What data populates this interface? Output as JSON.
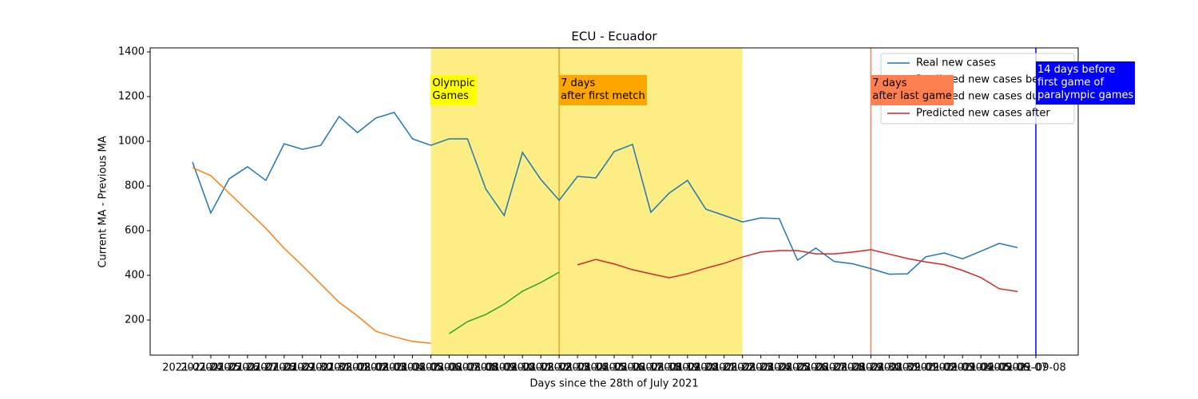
{
  "chart_data": {
    "type": "line",
    "title": "ECU - Ecuador",
    "xlabel": "Days since the 28th of July 2021",
    "ylabel": "Current MA - Previous MA",
    "categories": [
      "2021-07-24",
      "2021-07-25",
      "2021-07-26",
      "2021-07-27",
      "2021-07-28",
      "2021-07-29",
      "2021-07-30",
      "2021-07-31",
      "2021-08-01",
      "2021-08-02",
      "2021-08-03",
      "2021-08-04",
      "2021-08-05",
      "2021-08-06",
      "2021-08-07",
      "2021-08-08",
      "2021-08-09",
      "2021-08-10",
      "2021-08-11",
      "2021-08-12",
      "2021-08-13",
      "2021-08-14",
      "2021-08-15",
      "2021-08-16",
      "2021-08-17",
      "2021-08-18",
      "2021-08-19",
      "2021-08-20",
      "2021-08-21",
      "2021-08-22",
      "2021-08-23",
      "2021-08-24",
      "2021-08-25",
      "2021-08-26",
      "2021-08-27",
      "2021-08-28",
      "2021-08-29",
      "2021-08-30",
      "2021-08-31",
      "2021-09-01",
      "2021-09-02",
      "2021-09-03",
      "2021-09-04",
      "2021-09-05",
      "2021-09-06",
      "2021-09-07",
      "2021-09-08"
    ],
    "series": [
      {
        "name": "Real new cases",
        "color": "#1f77b4",
        "values": [
          907,
          679,
          832,
          886,
          825,
          989,
          964,
          982,
          1111,
          1039,
          1104,
          1129,
          1011,
          982,
          1011,
          1011,
          786,
          668,
          950,
          829,
          736,
          843,
          836,
          954,
          986,
          682,
          768,
          825,
          696,
          668,
          639,
          657,
          654,
          468,
          522,
          462,
          452,
          430,
          405,
          407,
          483,
          500,
          474,
          508,
          543,
          524,
          null
        ]
      },
      {
        "name": "Predicted new cases before",
        "color": "#ff7f0e",
        "values": [
          882,
          846,
          768,
          689,
          611,
          521,
          443,
          361,
          279,
          218,
          150,
          125,
          104,
          96,
          null,
          null,
          null,
          null,
          null,
          null,
          null,
          null,
          null,
          null,
          null,
          null,
          null,
          null,
          null,
          null,
          null,
          null,
          null,
          null,
          null,
          null,
          null,
          null,
          null,
          null,
          null,
          null,
          null,
          null,
          null,
          null,
          null
        ]
      },
      {
        "name": "Predicted new cases during",
        "color": "#2ca02c",
        "values": [
          null,
          null,
          null,
          null,
          null,
          null,
          null,
          null,
          null,
          null,
          null,
          null,
          null,
          null,
          139,
          193,
          225,
          271,
          329,
          368,
          414,
          null,
          null,
          null,
          null,
          null,
          null,
          null,
          null,
          null,
          null,
          null,
          null,
          null,
          null,
          null,
          null,
          null,
          null,
          null,
          null,
          null,
          null,
          null,
          null,
          null,
          null
        ]
      },
      {
        "name": "Predicted new cases after",
        "color": "#d62728",
        "values": [
          null,
          null,
          null,
          null,
          null,
          null,
          null,
          null,
          null,
          null,
          null,
          null,
          null,
          null,
          null,
          null,
          null,
          null,
          null,
          null,
          null,
          447,
          471,
          451,
          425,
          407,
          389,
          407,
          432,
          454,
          482,
          504,
          511,
          511,
          496,
          496,
          504,
          515,
          495,
          475,
          460,
          448,
          422,
          390,
          340,
          328,
          null
        ]
      }
    ],
    "ylim": [
      43,
      1418
    ],
    "yticks": [
      200,
      400,
      600,
      800,
      1000,
      1200,
      1400
    ],
    "span": {
      "start": "2021-08-06",
      "end": "2021-08-23",
      "color": "#fcee85",
      "label": "Olympic\nGames",
      "label_bg": "#ffff00",
      "label_color": "#000000"
    },
    "markers": [
      {
        "date": "2021-08-13",
        "color": "#f0a020",
        "label": "7 days\nafter first metch",
        "label_bg": "#ffa500",
        "label_color": "#000000"
      },
      {
        "date": "2021-08-30",
        "color": "#f4845a",
        "label": "7 days\nafter last game",
        "label_bg": "#ff7f50",
        "label_color": "#000000"
      },
      {
        "date": "2021-09-08",
        "color": "#0000ff",
        "label": "14 days before\nfirst game of\nparalympic games",
        "label_bg": "#0000ff",
        "label_color": "#ffffff"
      }
    ],
    "legend": "upper right"
  }
}
